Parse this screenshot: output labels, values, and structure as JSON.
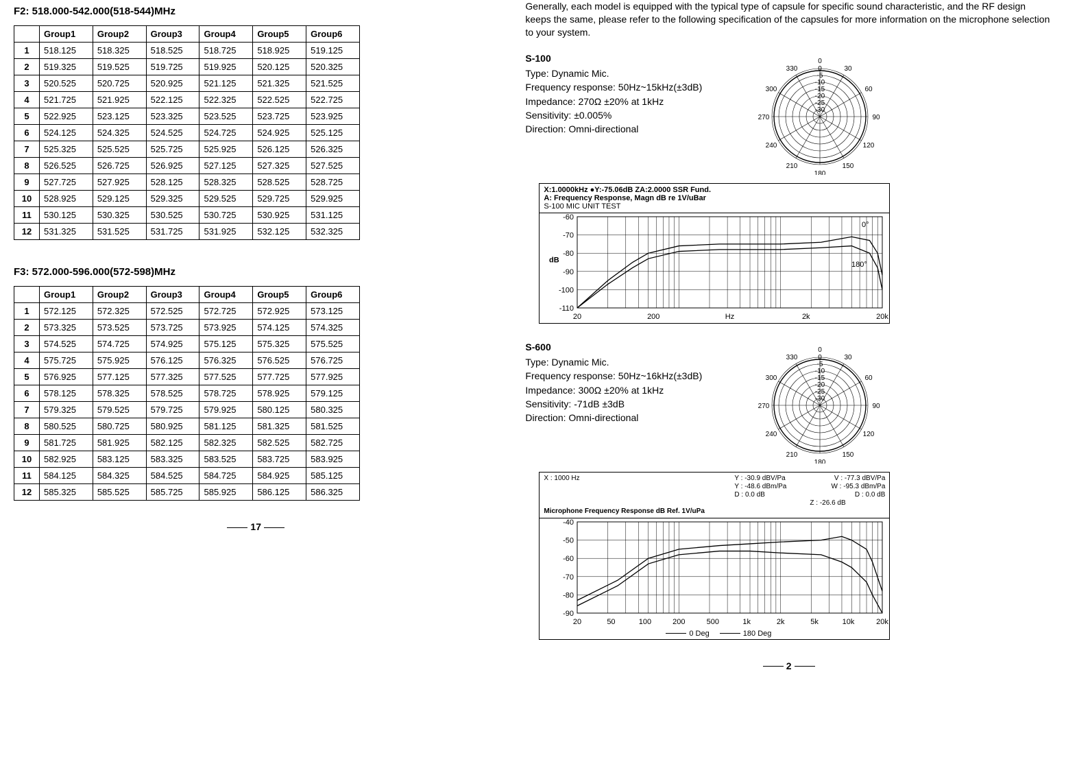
{
  "left": {
    "t1": {
      "title": "F2: 518.000-542.000(518-544)MHz",
      "headers": [
        "",
        "Group1",
        "Group2",
        "Group3",
        "Group4",
        "Group5",
        "Group6"
      ],
      "rows": [
        [
          "1",
          "518.125",
          "518.325",
          "518.525",
          "518.725",
          "518.925",
          "519.125"
        ],
        [
          "2",
          "519.325",
          "519.525",
          "519.725",
          "519.925",
          "520.125",
          "520.325"
        ],
        [
          "3",
          "520.525",
          "520.725",
          "520.925",
          "521.125",
          "521.325",
          "521.525"
        ],
        [
          "4",
          "521.725",
          "521.925",
          "522.125",
          "522.325",
          "522.525",
          "522.725"
        ],
        [
          "5",
          "522.925",
          "523.125",
          "523.325",
          "523.525",
          "523.725",
          "523.925"
        ],
        [
          "6",
          "524.125",
          "524.325",
          "524.525",
          "524.725",
          "524.925",
          "525.125"
        ],
        [
          "7",
          "525.325",
          "525.525",
          "525.725",
          "525.925",
          "526.125",
          "526.325"
        ],
        [
          "8",
          "526.525",
          "526.725",
          "526.925",
          "527.125",
          "527.325",
          "527.525"
        ],
        [
          "9",
          "527.725",
          "527.925",
          "528.125",
          "528.325",
          "528.525",
          "528.725"
        ],
        [
          "10",
          "528.925",
          "529.125",
          "529.325",
          "529.525",
          "529.725",
          "529.925"
        ],
        [
          "11",
          "530.125",
          "530.325",
          "530.525",
          "530.725",
          "530.925",
          "531.125"
        ],
        [
          "12",
          "531.325",
          "531.525",
          "531.725",
          "531.925",
          "532.125",
          "532.325"
        ]
      ]
    },
    "t2": {
      "title": "F3: 572.000-596.000(572-598)MHz",
      "headers": [
        "",
        "Group1",
        "Group2",
        "Group3",
        "Group4",
        "Group5",
        "Group6"
      ],
      "rows": [
        [
          "1",
          "572.125",
          "572.325",
          "572.525",
          "572.725",
          "572.925",
          "573.125"
        ],
        [
          "2",
          "573.325",
          "573.525",
          "573.725",
          "573.925",
          "574.125",
          "574.325"
        ],
        [
          "3",
          "574.525",
          "574.725",
          "574.925",
          "575.125",
          "575.325",
          "575.525"
        ],
        [
          "4",
          "575.725",
          "575.925",
          "576.125",
          "576.325",
          "576.525",
          "576.725"
        ],
        [
          "5",
          "576.925",
          "577.125",
          "577.325",
          "577.525",
          "577.725",
          "577.925"
        ],
        [
          "6",
          "578.125",
          "578.325",
          "578.525",
          "578.725",
          "578.925",
          "579.125"
        ],
        [
          "7",
          "579.325",
          "579.525",
          "579.725",
          "579.925",
          "580.125",
          "580.325"
        ],
        [
          "8",
          "580.525",
          "580.725",
          "580.925",
          "581.125",
          "581.325",
          "581.525"
        ],
        [
          "9",
          "581.725",
          "581.925",
          "582.125",
          "582.325",
          "582.525",
          "582.725"
        ],
        [
          "10",
          "582.925",
          "583.125",
          "583.325",
          "583.525",
          "583.725",
          "583.925"
        ],
        [
          "11",
          "584.125",
          "584.325",
          "584.525",
          "584.725",
          "584.925",
          "585.125"
        ],
        [
          "12",
          "585.325",
          "585.525",
          "585.725",
          "585.925",
          "586.125",
          "586.325"
        ]
      ]
    },
    "page_no": "17"
  },
  "right": {
    "intro": "Generally, each model is equipped with the typical type of capsule for specific sound characteristic, and the RF design keeps the same, please refer to the following specification of the capsules for more information on the microphone selection to your system.",
    "s100": {
      "model": "S-100",
      "type": "Type: Dynamic Mic.",
      "freq": "Frequency response: 50Hz~15kHz(±3dB)",
      "imp": "Impedance: 270Ω ±20% at 1kHz",
      "sens": "Sensitivity: ±0.005%",
      "dir": "Direction: Omni-directional",
      "polar": {
        "angles": [
          0,
          30,
          60,
          90,
          120,
          150,
          180,
          210,
          240,
          270,
          300,
          330
        ],
        "circles_db": [
          -30,
          -25,
          -20,
          -15,
          -10,
          -5,
          0
        ]
      },
      "chart": {
        "hdr_line1": "X:1.0000kHz    ●Y:-75.06dB    ZA:2.0000       SSR Fund.",
        "hdr_line2": "A: Frequency Response, Magn dB re 1V/uBar",
        "hdr_line3": "S-100 MIC UNIT TEST",
        "ylabel": "dB",
        "y_ticks": [
          -60,
          -70,
          -80,
          -90,
          -100,
          -110
        ],
        "x_ticks": [
          "20",
          "200",
          "Hz",
          "2k",
          "20k"
        ],
        "annot": [
          "0°",
          "180°"
        ],
        "line0": [
          [
            20,
            -110
          ],
          [
            40,
            -95
          ],
          [
            70,
            -85
          ],
          [
            100,
            -80
          ],
          [
            200,
            -76
          ],
          [
            500,
            -75
          ],
          [
            1000,
            -75
          ],
          [
            2000,
            -75
          ],
          [
            5000,
            -74
          ],
          [
            10000,
            -71
          ],
          [
            15000,
            -73
          ],
          [
            18000,
            -80
          ],
          [
            20000,
            -92
          ]
        ],
        "line180": [
          [
            20,
            -110
          ],
          [
            40,
            -97
          ],
          [
            70,
            -88
          ],
          [
            100,
            -83
          ],
          [
            200,
            -79
          ],
          [
            500,
            -78
          ],
          [
            1000,
            -78
          ],
          [
            2000,
            -78
          ],
          [
            5000,
            -77
          ],
          [
            10000,
            -76
          ],
          [
            15000,
            -80
          ],
          [
            18000,
            -88
          ],
          [
            20000,
            -100
          ]
        ]
      }
    },
    "s600": {
      "model": "S-600",
      "type": "Type: Dynamic Mic.",
      "freq": "Frequency response: 50Hz~16kHz(±3dB)",
      "imp": "Impedance: 300Ω ±20% at 1kHz",
      "sens": "Sensitivity: -71dB ±3dB",
      "dir": "Direction: Omni-directional",
      "polar": {
        "angles": [
          0,
          30,
          60,
          90,
          120,
          150,
          180,
          210,
          240,
          270,
          300,
          330
        ],
        "circles_db": [
          -30,
          -25,
          -20,
          -15,
          -10,
          -5,
          0
        ]
      },
      "chart": {
        "hdr_right": [
          "X : 1000 Hz",
          "Y : -30.9 dBV/Pa",
          "V : -77.3 dBV/Pa",
          "Y : -48.6 dBm/Pa",
          "W : -95.3 dBm/Pa",
          "D : 0.0 dB",
          "D : 0.0 dB",
          "",
          "Z : -26.6 dB"
        ],
        "hdr_left": "Microphone Frequency Response    dB Ref. 1V/uPa",
        "y_ticks": [
          -40,
          -50,
          -60,
          -70,
          -80,
          -90
        ],
        "x_ticks": [
          "20",
          "50",
          "100",
          "200",
          "500",
          "1k",
          "2k",
          "5k",
          "10k",
          "20k"
        ],
        "line0": [
          [
            20,
            -83
          ],
          [
            50,
            -72
          ],
          [
            100,
            -60
          ],
          [
            200,
            -55
          ],
          [
            500,
            -53
          ],
          [
            1000,
            -52
          ],
          [
            2000,
            -51
          ],
          [
            5000,
            -50
          ],
          [
            8000,
            -48
          ],
          [
            10000,
            -50
          ],
          [
            14000,
            -55
          ],
          [
            16000,
            -62
          ],
          [
            20000,
            -78
          ]
        ],
        "line180": [
          [
            20,
            -86
          ],
          [
            50,
            -75
          ],
          [
            100,
            -63
          ],
          [
            200,
            -58
          ],
          [
            500,
            -56
          ],
          [
            1000,
            -56
          ],
          [
            2000,
            -57
          ],
          [
            5000,
            -58
          ],
          [
            8000,
            -62
          ],
          [
            10000,
            -65
          ],
          [
            14000,
            -73
          ],
          [
            16000,
            -80
          ],
          [
            20000,
            -90
          ]
        ],
        "legend": [
          "0 Deg",
          "180 Deg"
        ]
      }
    },
    "page_no": "2"
  }
}
